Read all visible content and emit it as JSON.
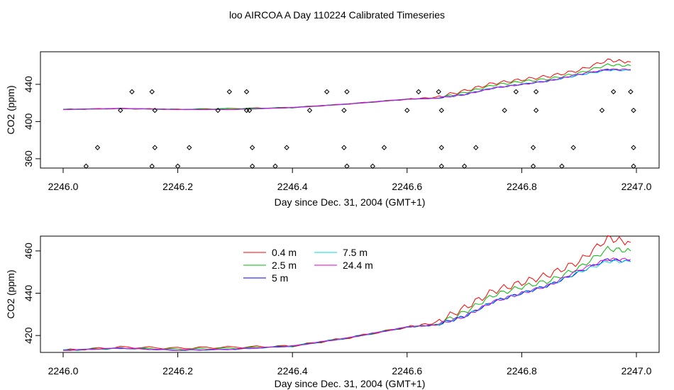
{
  "title": "loo AIRCOA A  Day 110224  Calibrated Timeseries",
  "colors": {
    "0.4 m": "#ff0000",
    "2.5 m": "#00bb00",
    "5 m": "#0000ff",
    "7.5 m": "#00dddd",
    "24.4 m": "#dd00dd"
  },
  "chart_data": [
    {
      "type": "line",
      "xlabel": "Day since Dec. 31, 2004 (GMT+1)",
      "ylabel": "CO2 (ppm)",
      "xlim": [
        2246.0,
        2247.0
      ],
      "ylim": [
        350,
        475
      ],
      "xticks": [
        "2246.0",
        "2246.2",
        "2246.4",
        "2246.6",
        "2246.8",
        "2247.0"
      ],
      "yticks": [
        "360",
        "400",
        "440"
      ],
      "grid": false,
      "x": [
        2246.0,
        2246.1,
        2246.2,
        2246.3,
        2246.4,
        2246.5,
        2246.6,
        2246.65,
        2246.7,
        2246.75,
        2246.8,
        2246.85,
        2246.9,
        2246.95,
        2246.99
      ],
      "series": [
        {
          "name": "0.4 m",
          "values": [
            413,
            414,
            413,
            414,
            415,
            419,
            424,
            426,
            433,
            441,
            445,
            449,
            455,
            466,
            464
          ]
        },
        {
          "name": "2.5 m",
          "values": [
            413,
            414,
            413,
            414,
            415,
            419,
            424,
            425,
            431,
            439,
            443,
            446,
            452,
            461,
            460
          ]
        },
        {
          "name": "5 m",
          "values": [
            413,
            414,
            413,
            413,
            415,
            419,
            424,
            425,
            429,
            436,
            440,
            444,
            450,
            456,
            455
          ]
        },
        {
          "name": "7.5 m",
          "values": [
            413,
            414,
            413,
            413,
            415,
            419,
            424,
            425,
            429,
            436,
            440,
            444,
            450,
            455,
            455
          ]
        },
        {
          "name": "24.4 m",
          "values": [
            413,
            414,
            413,
            413,
            415,
            419,
            424,
            425,
            429,
            436,
            440,
            444,
            451,
            456,
            456
          ]
        }
      ],
      "markers": {
        "type": "scatter",
        "x": [
          2246.04,
          2246.06,
          2246.1,
          2246.12,
          2246.155,
          2246.16,
          2246.16,
          2246.155,
          2246.2,
          2246.22,
          2246.27,
          2246.29,
          2246.32,
          2246.325,
          2246.33,
          2246.32,
          2246.33,
          2246.37,
          2246.39,
          2246.43,
          2246.46,
          2246.49,
          2246.495,
          2246.49,
          2246.495,
          2246.54,
          2246.56,
          2246.6,
          2246.62,
          2246.655,
          2246.66,
          2246.66,
          2246.66,
          2246.7,
          2246.72,
          2246.77,
          2246.79,
          2246.82,
          2246.825,
          2246.825,
          2246.82,
          2246.87,
          2246.89,
          2246.94,
          2246.96,
          2246.99,
          2246.995,
          2246.995,
          2246.995
        ],
        "y": [
          352,
          372,
          412,
          432,
          352,
          372,
          412,
          432,
          352,
          372,
          412,
          432,
          432,
          412,
          372,
          412,
          352,
          352,
          372,
          412,
          432,
          412,
          432,
          372,
          352,
          352,
          372,
          412,
          432,
          432,
          412,
          372,
          352,
          352,
          372,
          412,
          432,
          372,
          412,
          432,
          352,
          352,
          372,
          412,
          432,
          432,
          412,
          372,
          352
        ]
      }
    },
    {
      "type": "line",
      "xlabel": "Day since Dec. 31, 2004 (GMT+1)",
      "ylabel": "CO2 (ppm)",
      "xlim": [
        2246.0,
        2247.0
      ],
      "ylim": [
        412,
        467
      ],
      "xticks": [
        "2246.0",
        "2246.2",
        "2246.4",
        "2246.6",
        "2246.8",
        "2247.0"
      ],
      "yticks": [
        "420",
        "440",
        "460"
      ],
      "grid": false,
      "legend": "top-left",
      "x": [
        2246.0,
        2246.1,
        2246.2,
        2246.3,
        2246.4,
        2246.5,
        2246.6,
        2246.65,
        2246.7,
        2246.75,
        2246.8,
        2246.85,
        2246.9,
        2246.95,
        2246.99
      ],
      "series": [
        {
          "name": "0.4 m",
          "values": [
            413,
            414.5,
            414,
            414.5,
            415,
            419,
            424,
            426,
            433,
            441,
            445,
            449,
            455,
            466,
            464
          ]
        },
        {
          "name": "2.5 m",
          "values": [
            413,
            414,
            413.5,
            414,
            415,
            419,
            424,
            425,
            431,
            439,
            443,
            446,
            452,
            461,
            460
          ]
        },
        {
          "name": "5 m",
          "values": [
            413,
            414,
            413,
            413.5,
            415,
            419,
            424,
            425,
            429,
            436,
            440,
            444,
            450,
            456,
            455
          ]
        },
        {
          "name": "7.5 m",
          "values": [
            413,
            414,
            413,
            413.5,
            415,
            419,
            424,
            425,
            429,
            436,
            440,
            444,
            450,
            455,
            455
          ]
        },
        {
          "name": "24.4 m",
          "values": [
            413,
            414,
            413,
            413.5,
            415,
            419,
            424,
            425,
            429,
            436,
            440,
            444,
            451,
            456,
            456
          ]
        }
      ]
    }
  ]
}
